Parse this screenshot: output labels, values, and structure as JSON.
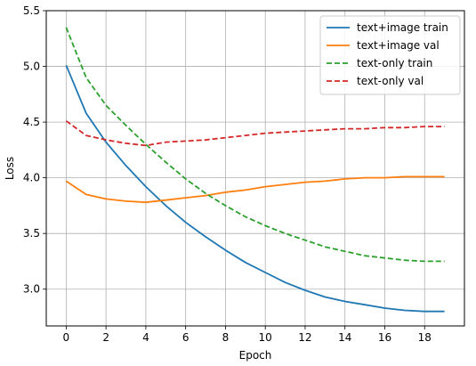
{
  "chart_data": {
    "type": "line",
    "xlabel": "Epoch",
    "ylabel": "Loss",
    "xlim": [
      -1,
      20
    ],
    "ylim": [
      2.67,
      5.5
    ],
    "x_ticks": [
      0,
      2,
      4,
      6,
      8,
      10,
      12,
      14,
      16,
      18
    ],
    "y_ticks": [
      3.0,
      3.5,
      4.0,
      4.5,
      5.0,
      5.5
    ],
    "grid": true,
    "legend_position": "top-right",
    "x": [
      0,
      1,
      2,
      3,
      4,
      5,
      6,
      7,
      8,
      9,
      10,
      11,
      12,
      13,
      14,
      15,
      16,
      17,
      18,
      19
    ],
    "series": [
      {
        "name": "text+image train",
        "color": "#1f77b4",
        "dash": "solid",
        "values": [
          5.01,
          4.58,
          4.32,
          4.11,
          3.92,
          3.75,
          3.6,
          3.47,
          3.35,
          3.24,
          3.15,
          3.06,
          2.99,
          2.93,
          2.89,
          2.86,
          2.83,
          2.81,
          2.8,
          2.8
        ]
      },
      {
        "name": "text+image val",
        "color": "#ff7f0e",
        "dash": "solid",
        "values": [
          3.97,
          3.85,
          3.81,
          3.79,
          3.78,
          3.8,
          3.82,
          3.84,
          3.87,
          3.89,
          3.92,
          3.94,
          3.96,
          3.97,
          3.99,
          4.0,
          4.0,
          4.01,
          4.01,
          4.01
        ]
      },
      {
        "name": "text-only train",
        "color": "#2ca02c",
        "dash": "dashed",
        "values": [
          5.35,
          4.9,
          4.65,
          4.47,
          4.3,
          4.14,
          3.99,
          3.86,
          3.75,
          3.65,
          3.57,
          3.5,
          3.44,
          3.38,
          3.34,
          3.3,
          3.28,
          3.26,
          3.25,
          3.25
        ]
      },
      {
        "name": "text-only val",
        "color": "#d62728",
        "dash": "dashed",
        "values": [
          4.51,
          4.38,
          4.34,
          4.31,
          4.29,
          4.32,
          4.33,
          4.34,
          4.36,
          4.38,
          4.4,
          4.41,
          4.42,
          4.43,
          4.44,
          4.44,
          4.45,
          4.45,
          4.46,
          4.46
        ]
      }
    ]
  }
}
